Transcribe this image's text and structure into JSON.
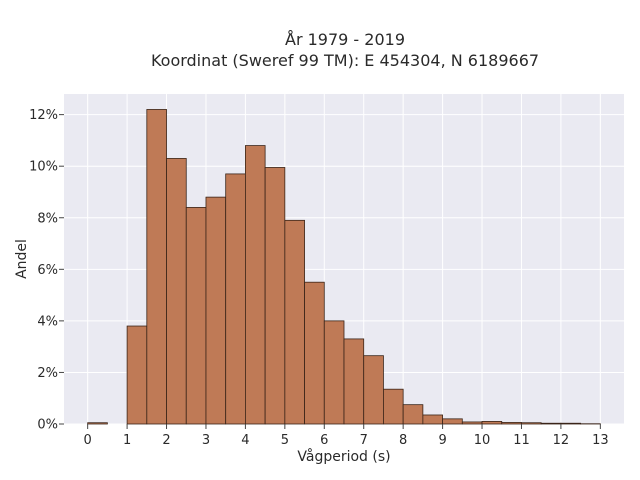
{
  "chart_data": {
    "type": "bar",
    "title_line1": "År 1979 - 2019",
    "title_line2": "Koordinat (Sweref 99 TM): E 454304, N 6189667",
    "xlabel": "Vågperiod (s)",
    "ylabel": "Andel",
    "xlim": [
      -0.6,
      13.6
    ],
    "ylim": [
      0,
      12.8
    ],
    "x_ticks": [
      "0",
      "1",
      "2",
      "3",
      "4",
      "5",
      "6",
      "7",
      "8",
      "9",
      "10",
      "11",
      "12",
      "13"
    ],
    "y_ticks": [
      "0%",
      "2%",
      "4%",
      "6%",
      "8%",
      "10%",
      "12%"
    ],
    "bin_width": 0.5,
    "bins": [
      {
        "start": 0.0,
        "value": 0.05
      },
      {
        "start": 1.0,
        "value": 3.8
      },
      {
        "start": 1.5,
        "value": 12.2
      },
      {
        "start": 2.0,
        "value": 10.3
      },
      {
        "start": 2.5,
        "value": 8.4
      },
      {
        "start": 3.0,
        "value": 8.8
      },
      {
        "start": 3.5,
        "value": 9.7
      },
      {
        "start": 4.0,
        "value": 10.8
      },
      {
        "start": 4.5,
        "value": 9.95
      },
      {
        "start": 5.0,
        "value": 7.9
      },
      {
        "start": 5.5,
        "value": 5.5
      },
      {
        "start": 6.0,
        "value": 4.0
      },
      {
        "start": 6.5,
        "value": 3.3
      },
      {
        "start": 7.0,
        "value": 2.65
      },
      {
        "start": 7.5,
        "value": 1.35
      },
      {
        "start": 8.0,
        "value": 0.75
      },
      {
        "start": 8.5,
        "value": 0.35
      },
      {
        "start": 9.0,
        "value": 0.2
      },
      {
        "start": 9.5,
        "value": 0.08
      },
      {
        "start": 10.0,
        "value": 0.1
      },
      {
        "start": 10.5,
        "value": 0.06
      },
      {
        "start": 11.0,
        "value": 0.05
      },
      {
        "start": 11.5,
        "value": 0.03
      },
      {
        "start": 12.0,
        "value": 0.03
      },
      {
        "start": 12.5,
        "value": 0.01
      }
    ],
    "bar_color": "#bf7a56",
    "bar_edge_color": "#3a2418",
    "plot_background": "#eaeaf2",
    "grid": true,
    "legend": false
  }
}
